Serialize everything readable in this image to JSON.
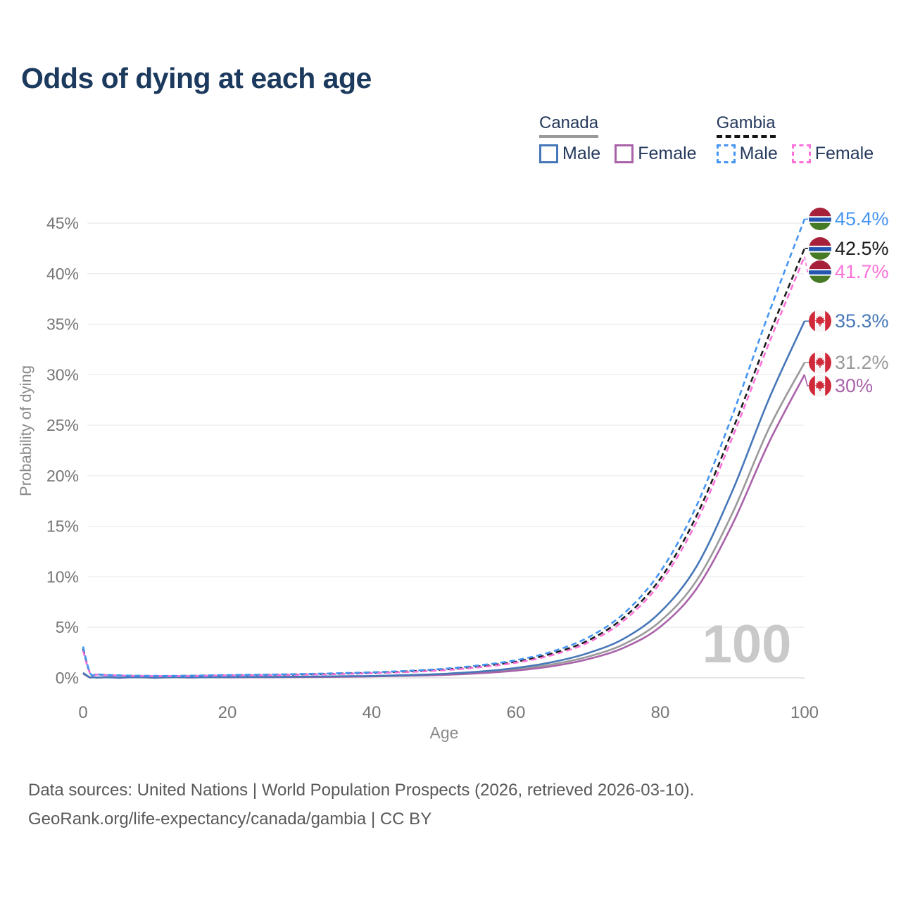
{
  "title": "Odds of dying at each age",
  "legend": {
    "groups": [
      {
        "country": "Canada",
        "line_style": "solid",
        "underline_color": "#9a9a9a",
        "items": [
          {
            "label": "Male",
            "color": "#4677b8"
          },
          {
            "label": "Female",
            "color": "#a962a9"
          }
        ]
      },
      {
        "country": "Gambia",
        "line_style": "dashed",
        "underline_color": "#151515",
        "items": [
          {
            "label": "Male",
            "color": "#4595f2"
          },
          {
            "label": "Female",
            "color": "#fb71d9"
          }
        ]
      }
    ]
  },
  "watermark": "100",
  "footer": {
    "line1": "Data sources: United Nations | World Population Prospects (2026, retrieved 2026-03-10).",
    "line2": "GeoRank.org/life-expectancy/canada/gambia | CC BY"
  },
  "chart_data": {
    "type": "line",
    "title": "Odds of dying at each age",
    "xlabel": "Age",
    "ylabel": "Probability of dying",
    "xlim": [
      0,
      100
    ],
    "ylim_percent": [
      0,
      47
    ],
    "grid": "horizontal",
    "x_ticks": [
      {
        "value": 0,
        "label": "0"
      },
      {
        "value": 20,
        "label": "20"
      },
      {
        "value": 40,
        "label": "40"
      },
      {
        "value": 60,
        "label": "60"
      },
      {
        "value": 80,
        "label": "80"
      },
      {
        "value": 100,
        "label": "100"
      }
    ],
    "y_ticks": [
      {
        "value": 0,
        "label": "0%"
      },
      {
        "value": 5,
        "label": "5%"
      },
      {
        "value": 10,
        "label": "10%"
      },
      {
        "value": 15,
        "label": "15%"
      },
      {
        "value": 20,
        "label": "20%"
      },
      {
        "value": 25,
        "label": "25%"
      },
      {
        "value": 30,
        "label": "30%"
      },
      {
        "value": 35,
        "label": "35%"
      },
      {
        "value": 40,
        "label": "40%"
      },
      {
        "value": 45,
        "label": "45%"
      }
    ],
    "ages": [
      0,
      1,
      2,
      5,
      10,
      15,
      20,
      25,
      30,
      35,
      40,
      45,
      50,
      55,
      60,
      65,
      70,
      75,
      80,
      85,
      90,
      95,
      100
    ],
    "series": [
      {
        "id": "canada-both",
        "name": "Canada (both sexes)",
        "country": "canada",
        "sex": "both",
        "color": "#9a9a9a",
        "dash": false,
        "end_label": "31.2%",
        "end_value": 31.2,
        "values_percent": [
          0.45,
          0.035,
          0.02,
          0.01,
          0.01,
          0.04,
          0.06,
          0.08,
          0.1,
          0.12,
          0.16,
          0.23,
          0.34,
          0.53,
          0.84,
          1.33,
          2.1,
          3.35,
          5.6,
          9.6,
          16.3,
          24.6,
          31.2
        ]
      },
      {
        "id": "canada-female",
        "name": "Canada Female",
        "country": "canada",
        "sex": "female",
        "color": "#a962a9",
        "dash": false,
        "end_label": "30%",
        "end_value": 30,
        "values_percent": [
          0.42,
          0.03,
          0.018,
          0.01,
          0.01,
          0.03,
          0.05,
          0.06,
          0.08,
          0.1,
          0.14,
          0.2,
          0.29,
          0.45,
          0.72,
          1.15,
          1.85,
          3.0,
          5.05,
          8.8,
          15.2,
          23.2,
          30.0
        ]
      },
      {
        "id": "canada-male",
        "name": "Canada Male",
        "country": "canada",
        "sex": "male",
        "color": "#4677b8",
        "dash": false,
        "end_label": "35.3%",
        "end_value": 35.3,
        "values_percent": [
          0.5,
          0.04,
          0.022,
          0.012,
          0.012,
          0.05,
          0.08,
          0.1,
          0.12,
          0.15,
          0.19,
          0.27,
          0.4,
          0.62,
          0.98,
          1.55,
          2.45,
          3.9,
          6.5,
          11.0,
          18.5,
          27.5,
          35.3
        ]
      },
      {
        "id": "gambia-both",
        "name": "Gambia (both sexes)",
        "country": "gambia",
        "sex": "both",
        "color": "#1c1c1c",
        "dash": true,
        "end_label": "42.5%",
        "end_value": 42.5,
        "values_percent": [
          2.9,
          0.42,
          0.33,
          0.23,
          0.19,
          0.2,
          0.25,
          0.29,
          0.34,
          0.41,
          0.5,
          0.64,
          0.83,
          1.15,
          1.6,
          2.4,
          3.7,
          6.0,
          9.8,
          16.0,
          24.5,
          33.8,
          42.5
        ]
      },
      {
        "id": "gambia-female",
        "name": "Gambia Female",
        "country": "gambia",
        "sex": "female",
        "color": "#fb71d9",
        "dash": true,
        "end_label": "41.7%",
        "end_value": 41.7,
        "values_percent": [
          2.7,
          0.4,
          0.31,
          0.22,
          0.18,
          0.19,
          0.23,
          0.26,
          0.31,
          0.37,
          0.46,
          0.58,
          0.76,
          1.05,
          1.5,
          2.25,
          3.5,
          5.7,
          9.4,
          15.4,
          23.8,
          33.0,
          41.7
        ]
      },
      {
        "id": "gambia-male",
        "name": "Gambia Male",
        "country": "gambia",
        "sex": "male",
        "color": "#4595f2",
        "dash": true,
        "end_label": "45.4%",
        "end_value": 45.4,
        "values_percent": [
          3.1,
          0.45,
          0.35,
          0.25,
          0.2,
          0.22,
          0.28,
          0.32,
          0.38,
          0.45,
          0.55,
          0.7,
          0.9,
          1.25,
          1.75,
          2.6,
          4.0,
          6.4,
          10.5,
          17.0,
          26.0,
          36.0,
          45.4
        ]
      }
    ]
  },
  "flag_colors": {
    "gambia": {
      "red": "#a62139",
      "blue": "#2455b0",
      "green": "#477a26",
      "white": "#ffffff"
    },
    "canada": {
      "red": "#d02a3a",
      "white": "#f6f6f6"
    }
  }
}
